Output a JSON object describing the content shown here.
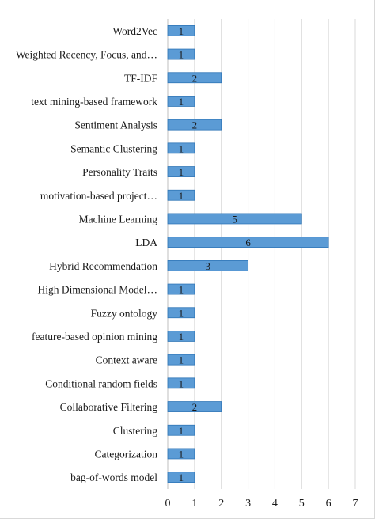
{
  "chart_data": {
    "type": "bar",
    "orientation": "horizontal",
    "categories": [
      "Word2Vec",
      "Weighted Recency, Focus, and…",
      "TF-IDF",
      "text mining-based framework",
      "Sentiment Analysis",
      "Semantic Clustering",
      "Personality Traits",
      "motivation-based project…",
      "Machine Learning",
      "LDA",
      "Hybrid Recommendation",
      "High Dimensional Model…",
      "Fuzzy ontology",
      "feature-based opinion mining",
      "Context aware",
      "Conditional random fields",
      "Collaborative Filtering",
      "Clustering",
      "Categorization",
      "bag-of-words model"
    ],
    "values": [
      1,
      1,
      2,
      1,
      2,
      1,
      1,
      1,
      5,
      6,
      3,
      1,
      1,
      1,
      1,
      1,
      2,
      1,
      1,
      1
    ],
    "data_labels": [
      "1",
      "1",
      "2",
      "1",
      "2",
      "1",
      "1",
      "1",
      "5",
      "6",
      "3",
      "1",
      "1",
      "1",
      "1",
      "1",
      "2",
      "1",
      "1",
      "1"
    ],
    "xlim": [
      0,
      7
    ],
    "xticks": [
      "0",
      "1",
      "2",
      "3",
      "4",
      "5",
      "6",
      "7"
    ],
    "title": "",
    "xlabel": "",
    "ylabel": "",
    "grid": "vertical",
    "legend": "none",
    "bar_color": "#5b9bd5",
    "bar_edge_color": "#2e75b6"
  }
}
